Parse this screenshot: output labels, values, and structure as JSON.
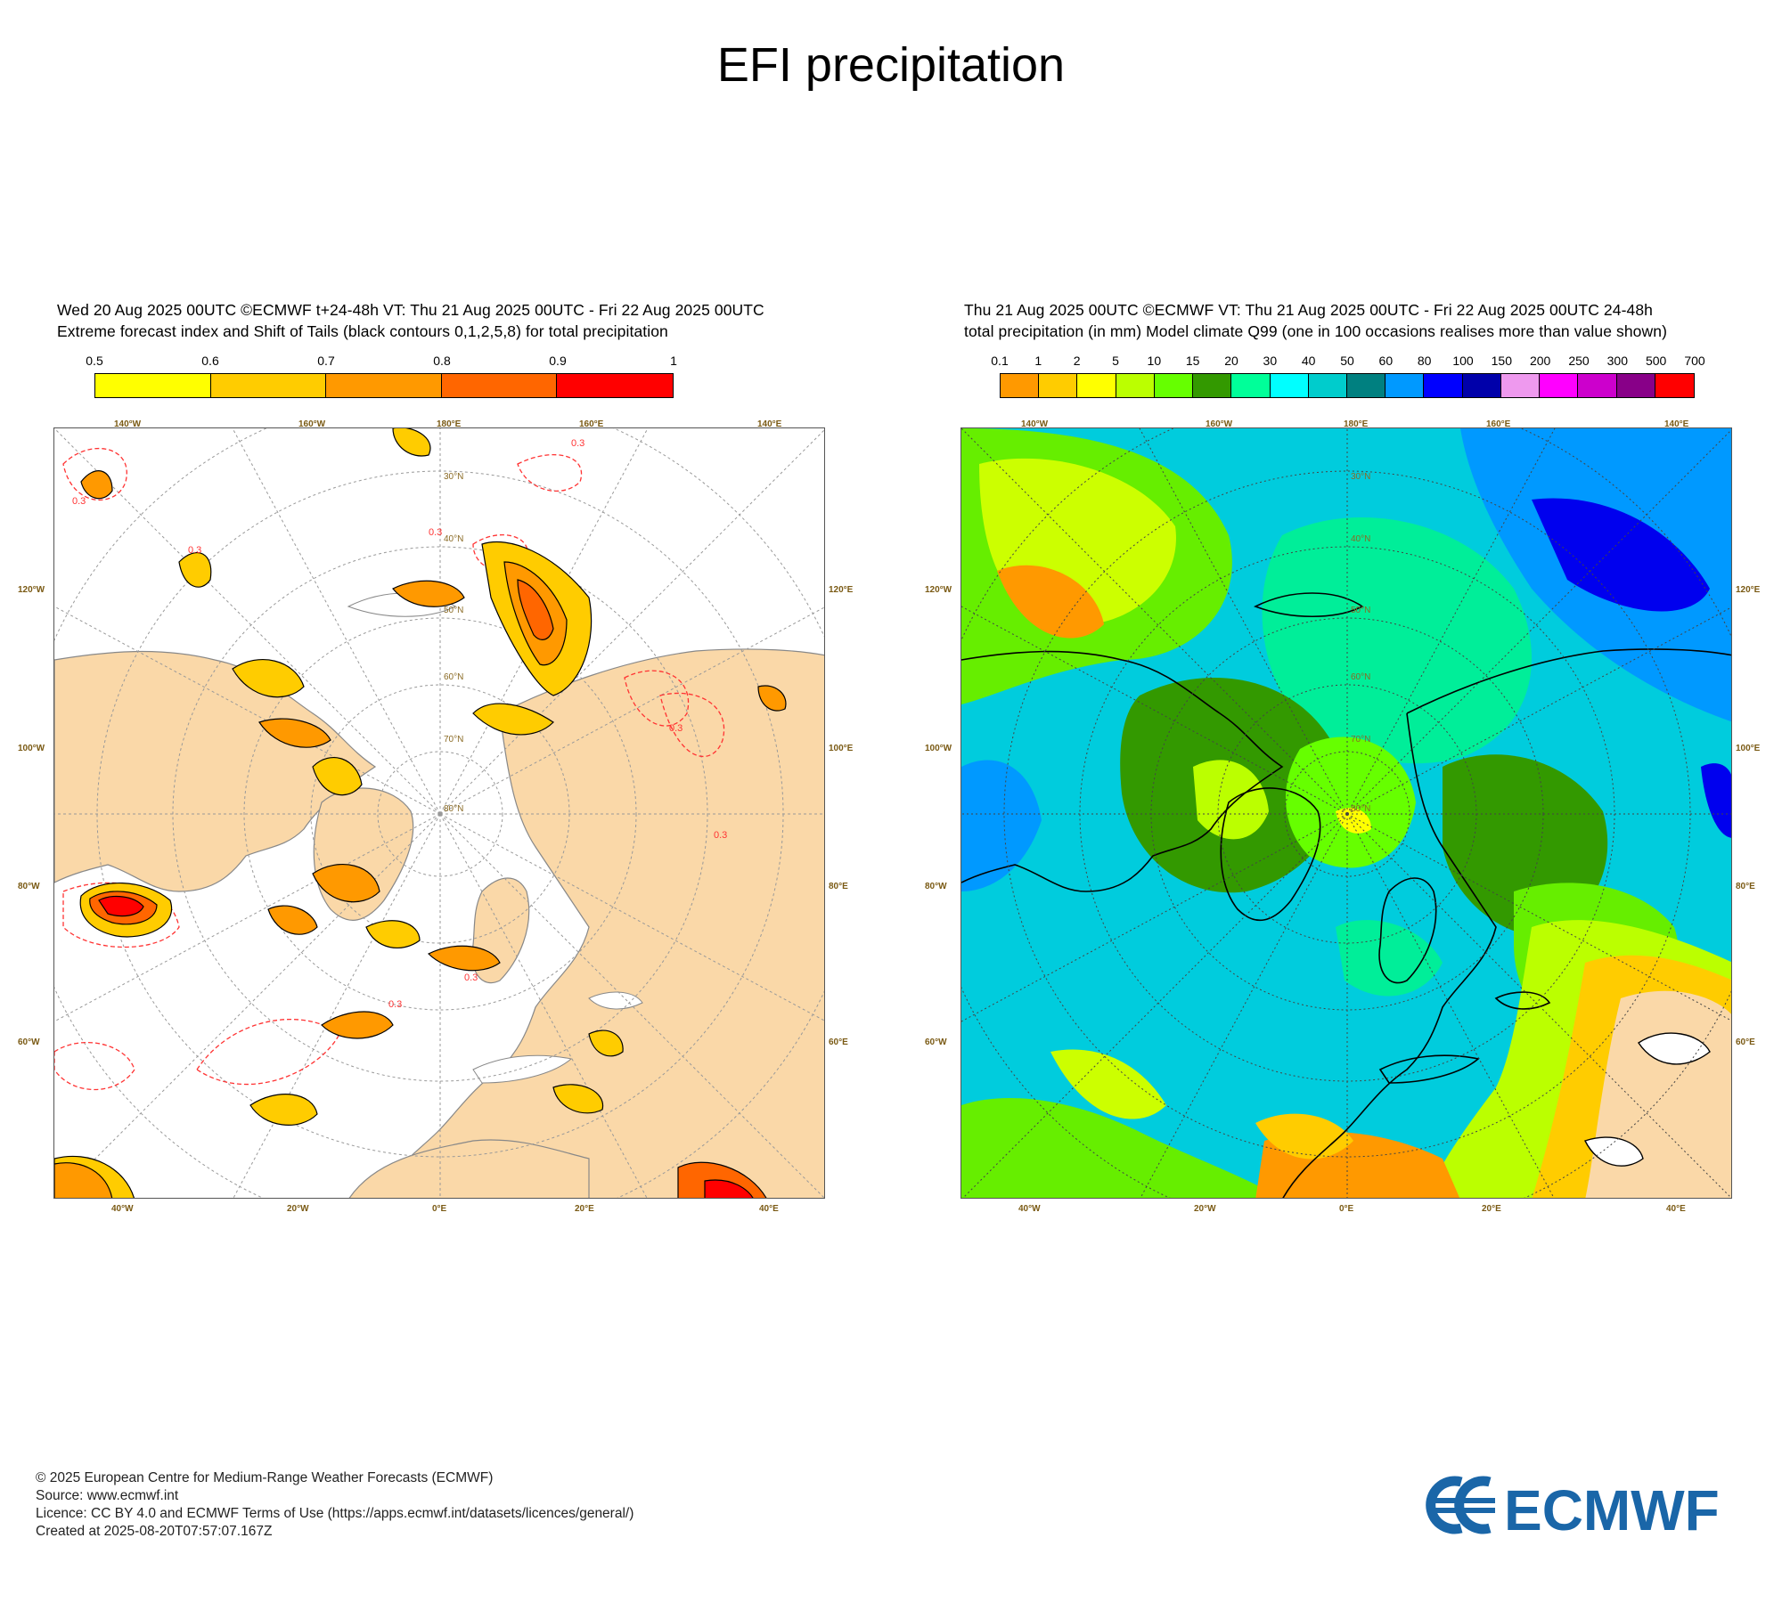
{
  "title": "EFI precipitation",
  "left_panel": {
    "header_line1": "Wed 20 Aug 2025 00UTC ©ECMWF t+24-48h  VT: Thu 21 Aug 2025 00UTC - Fri 22 Aug 2025 00UTC",
    "header_line2": "Extreme forecast index and Shift of Tails (black contours 0,1,2,5,8) for total precipitation",
    "colorbar": {
      "labels": [
        "0.5",
        "0.6",
        "0.7",
        "0.8",
        "0.9",
        "1"
      ],
      "colors": [
        "#ffff00",
        "#ffcc00",
        "#ff9900",
        "#ff6600",
        "#ff0000"
      ]
    },
    "contour_label": "0.3",
    "lon_labels": [
      "140°W",
      "160°W",
      "180°E",
      "160°E",
      "140°E",
      "120°W",
      "100°W",
      "80°W",
      "60°W",
      "120°E",
      "100°E",
      "80°E",
      "60°E",
      "40°W",
      "20°W",
      "0°E",
      "20°E",
      "40°E"
    ],
    "lat_labels": [
      "80°N",
      "70°N",
      "60°N",
      "50°N",
      "40°N",
      "30°N"
    ]
  },
  "right_panel": {
    "header_line1": "Thu 21 Aug 2025 00UTC ©ECMWF VT: Thu 21 Aug 2025 00UTC - Fri 22 Aug 2025 00UTC   24-48h",
    "header_line2": "total precipitation (in mm)  Model climate Q99 (one in 100 occasions realises more than value shown)",
    "colorbar": {
      "labels": [
        "0.1",
        "1",
        "2",
        "5",
        "10",
        "15",
        "20",
        "30",
        "40",
        "50",
        "60",
        "80",
        "100",
        "150",
        "200",
        "250",
        "300",
        "500",
        "700"
      ],
      "colors": [
        "#ff9900",
        "#ffcc00",
        "#ffff00",
        "#bbff00",
        "#66ff00",
        "#339900",
        "#00ff99",
        "#00ffff",
        "#00cccc",
        "#008080",
        "#0099ff",
        "#0000ff",
        "#0000aa",
        "#ee99ee",
        "#ff00ff",
        "#cc00cc",
        "#880088",
        "#ff0000"
      ]
    },
    "lon_labels": [
      "140°W",
      "160°W",
      "180°E",
      "160°E",
      "140°E",
      "120°W",
      "100°W",
      "80°W",
      "60°W",
      "120°E",
      "100°E",
      "80°E",
      "60°E",
      "40°W",
      "20°W",
      "0°E",
      "20°E",
      "40°E"
    ],
    "lat_labels": [
      "80°N",
      "70°N",
      "60°N",
      "50°N",
      "40°N",
      "30°N"
    ]
  },
  "footer": {
    "line1": "© 2025 European Centre for Medium-Range Weather Forecasts (ECMWF)",
    "line2": "Source: www.ecmwf.int",
    "line3": "Licence: CC BY 4.0 and ECMWF Terms of Use (https://apps.ecmwf.int/datasets/licences/general/)",
    "line4": "Created at 2025-08-20T07:57:07.167Z"
  },
  "logo": {
    "text": "ECMWF",
    "color": "#1a66a8"
  }
}
